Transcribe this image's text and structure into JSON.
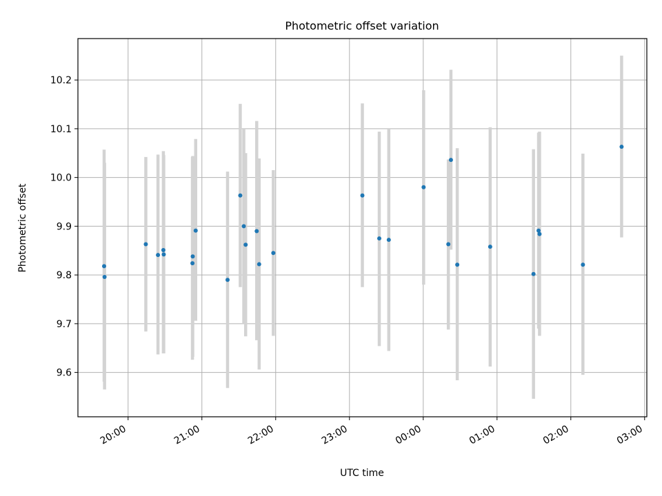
{
  "chart_data": {
    "type": "scatter",
    "title": "Photometric offset variation",
    "xlabel": "UTC time",
    "ylabel": "Photometric offset",
    "x_unit": "hours (UTC clock, after midnight continues past 24)",
    "x_ticks": [
      {
        "value": 20,
        "label": "20:00"
      },
      {
        "value": 21,
        "label": "21:00"
      },
      {
        "value": 22,
        "label": "22:00"
      },
      {
        "value": 23,
        "label": "23:00"
      },
      {
        "value": 24,
        "label": "00:00"
      },
      {
        "value": 25,
        "label": "01:00"
      },
      {
        "value": 26,
        "label": "02:00"
      },
      {
        "value": 27,
        "label": "03:00"
      }
    ],
    "y_ticks": [
      {
        "value": 9.6,
        "label": "9.6"
      },
      {
        "value": 9.7,
        "label": "9.7"
      },
      {
        "value": 9.8,
        "label": "9.8"
      },
      {
        "value": 9.9,
        "label": "9.9"
      },
      {
        "value": 10.0,
        "label": "10.0"
      },
      {
        "value": 10.1,
        "label": "10.1"
      },
      {
        "value": 10.2,
        "label": "10.2"
      }
    ],
    "xlim": [
      19.32,
      27.03
    ],
    "ylim": [
      9.509,
      10.285
    ],
    "grid": true,
    "point_color": "#1f77b4",
    "errorbar_color": "#d3d3d3",
    "points": [
      {
        "x": 19.675,
        "y": 9.818,
        "lo": 9.581,
        "hi": 10.057
      },
      {
        "x": 19.681,
        "y": 9.796,
        "lo": 9.565,
        "hi": 10.03
      },
      {
        "x": 20.24,
        "y": 9.863,
        "lo": 9.684,
        "hi": 10.042
      },
      {
        "x": 20.405,
        "y": 9.841,
        "lo": 9.637,
        "hi": 10.047
      },
      {
        "x": 20.478,
        "y": 9.851,
        "lo": 9.639,
        "hi": 10.054
      },
      {
        "x": 20.483,
        "y": 9.842,
        "lo": 9.639,
        "hi": 10.046
      },
      {
        "x": 20.872,
        "y": 9.824,
        "lo": 9.626,
        "hi": 10.042
      },
      {
        "x": 20.876,
        "y": 9.838,
        "lo": 9.632,
        "hi": 10.044
      },
      {
        "x": 20.916,
        "y": 9.891,
        "lo": 9.706,
        "hi": 10.079
      },
      {
        "x": 21.348,
        "y": 9.79,
        "lo": 9.568,
        "hi": 10.012
      },
      {
        "x": 21.52,
        "y": 9.963,
        "lo": 9.775,
        "hi": 10.151
      },
      {
        "x": 21.568,
        "y": 9.9,
        "lo": 9.7,
        "hi": 10.1
      },
      {
        "x": 21.593,
        "y": 9.862,
        "lo": 9.674,
        "hi": 10.05
      },
      {
        "x": 21.743,
        "y": 9.89,
        "lo": 9.666,
        "hi": 10.116
      },
      {
        "x": 21.776,
        "y": 9.822,
        "lo": 9.606,
        "hi": 10.039
      },
      {
        "x": 21.968,
        "y": 9.845,
        "lo": 9.675,
        "hi": 10.015
      },
      {
        "x": 23.175,
        "y": 9.963,
        "lo": 9.775,
        "hi": 10.152
      },
      {
        "x": 23.404,
        "y": 9.875,
        "lo": 9.654,
        "hi": 10.094
      },
      {
        "x": 23.533,
        "y": 9.872,
        "lo": 9.644,
        "hi": 10.1
      },
      {
        "x": 24.005,
        "y": 9.98,
        "lo": 9.78,
        "hi": 10.179
      },
      {
        "x": 24.34,
        "y": 9.863,
        "lo": 9.688,
        "hi": 10.037
      },
      {
        "x": 24.375,
        "y": 10.036,
        "lo": 9.852,
        "hi": 10.221
      },
      {
        "x": 24.461,
        "y": 9.821,
        "lo": 9.584,
        "hi": 10.06
      },
      {
        "x": 24.907,
        "y": 9.858,
        "lo": 9.612,
        "hi": 10.103
      },
      {
        "x": 25.494,
        "y": 9.802,
        "lo": 9.546,
        "hi": 10.058
      },
      {
        "x": 25.563,
        "y": 9.891,
        "lo": 9.69,
        "hi": 10.092
      },
      {
        "x": 25.576,
        "y": 9.884,
        "lo": 9.675,
        "hi": 10.094
      },
      {
        "x": 26.164,
        "y": 9.821,
        "lo": 9.595,
        "hi": 10.049
      },
      {
        "x": 26.688,
        "y": 10.063,
        "lo": 9.877,
        "hi": 10.25
      }
    ]
  }
}
